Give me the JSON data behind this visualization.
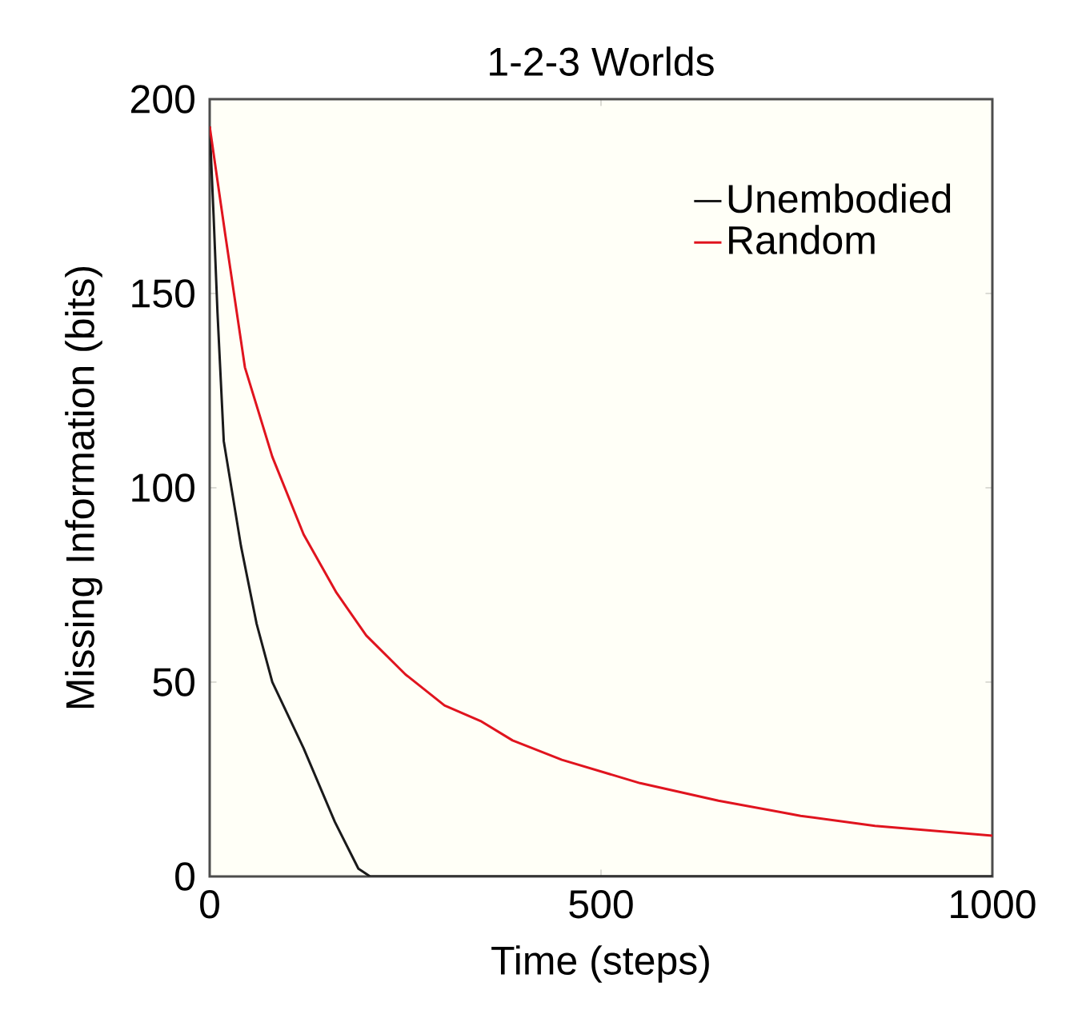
{
  "chart_data": {
    "type": "line",
    "title": "1-2-3 Worlds",
    "xlabel": "Time (steps)",
    "ylabel": "Missing Information (bits)",
    "xlim": [
      0,
      1000
    ],
    "ylim": [
      0,
      200
    ],
    "xticks": [
      0,
      500,
      1000
    ],
    "yticks": [
      0,
      50,
      100,
      150,
      200
    ],
    "legend": "top right",
    "grid": false,
    "marker": "none",
    "line_style": "solid",
    "series": [
      {
        "name": "Unembodied",
        "color": "#1a1a1a",
        "x": [
          0,
          5,
          10,
          18,
          40,
          60,
          80,
          120,
          160,
          190,
          205,
          1000
        ],
        "values": [
          193,
          170,
          145,
          112,
          85,
          65,
          50,
          33,
          14,
          2,
          0,
          0
        ]
      },
      {
        "name": "Random",
        "color": "#e0141e",
        "x": [
          0,
          20,
          45,
          80,
          120,
          162,
          200,
          250,
          300,
          346,
          387,
          450,
          550,
          650,
          755,
          850,
          1000
        ],
        "values": [
          193,
          165,
          131,
          108,
          88,
          73,
          62,
          52,
          44,
          40,
          35,
          30,
          24,
          19.5,
          15.6,
          13,
          10.5
        ]
      }
    ]
  }
}
